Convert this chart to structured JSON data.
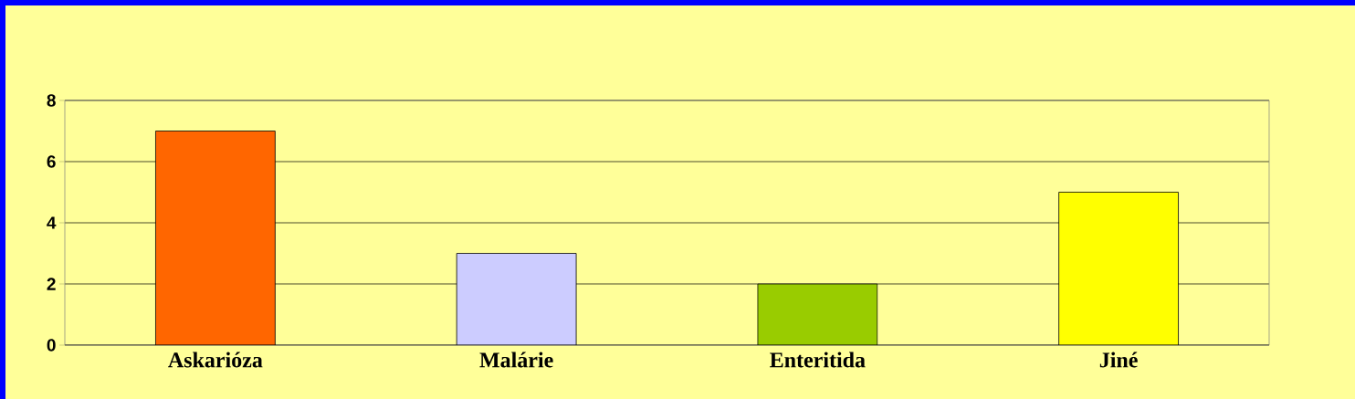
{
  "chart_data": {
    "type": "bar",
    "categories": [
      "Askarióza",
      "Malárie",
      "Enteritida",
      "Jiné"
    ],
    "values": [
      7,
      3,
      2,
      5
    ],
    "colors": [
      "#ff6600",
      "#ccccff",
      "#99cc00",
      "#ffff00"
    ],
    "ylim": [
      0,
      8
    ],
    "yticks": [
      0,
      2,
      4,
      6,
      8
    ],
    "grid": "y"
  }
}
